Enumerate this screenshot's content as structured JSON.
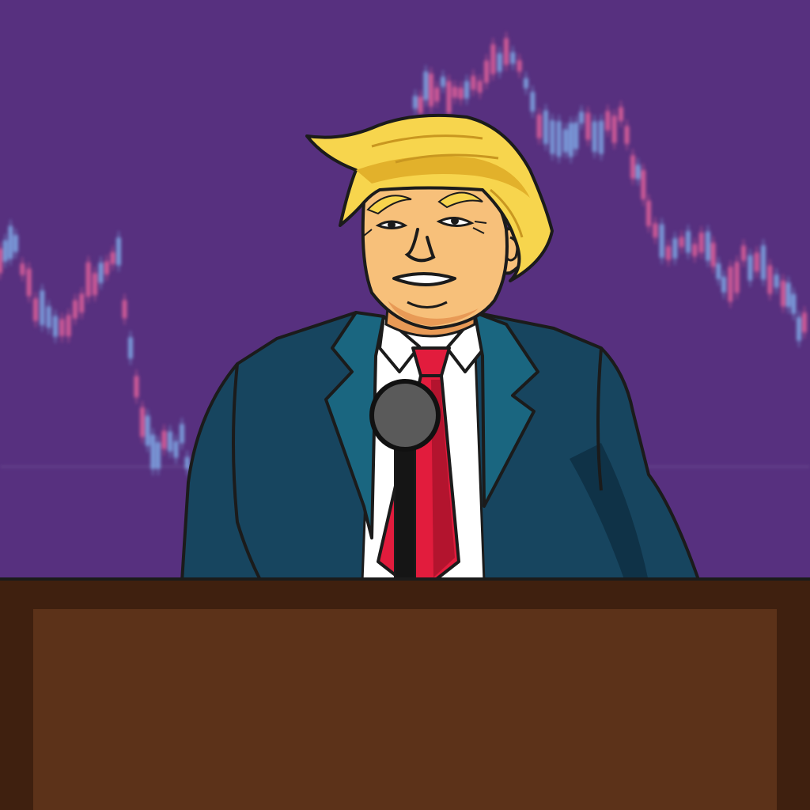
{
  "colors": {
    "background": "#57307f",
    "candle_up": "#7fa9e6",
    "candle_down": "#e0609a",
    "grid_line": "#6a4a91",
    "hair": "#f7d54d",
    "hair_shadow": "#e2b12b",
    "skin": "#f7c07a",
    "skin_shadow": "#e89a56",
    "suit": "#17455f",
    "suit_dark": "#0f3247",
    "lapel": "#1a6680",
    "shirt": "#ffffff",
    "tie": "#e21c3d",
    "tie_dark": "#b3142e",
    "microphone": "#5a5a5a",
    "mic_stand": "#151515",
    "podium_top": "#3f200f",
    "podium_front": "#5c3219",
    "outline": "#1b1b1b"
  },
  "background_chart": {
    "type": "candlestick-decoration",
    "trend": "falling"
  },
  "icons": {
    "character": "cartoon-politician-icon",
    "microphone": "microphone-icon",
    "podium": "podium-icon"
  }
}
